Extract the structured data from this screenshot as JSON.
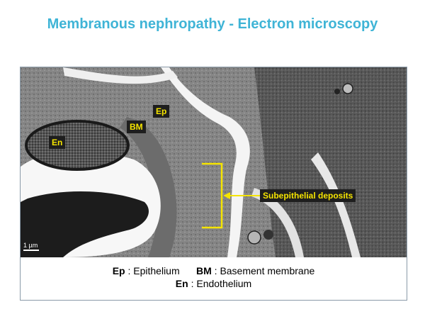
{
  "title": "Membranous nephropathy - Electron microscopy",
  "image": {
    "labels": {
      "ep": "Ep",
      "bm": "BM",
      "en": "En",
      "deposits": "Subepithelial deposits"
    },
    "scale_bar": "1 µm"
  },
  "legend": {
    "ep_abbr": "Ep",
    "ep_sep": ":",
    "ep_text": "Epithelium",
    "bm_abbr": "BM",
    "bm_sep": ":",
    "bm_text": "Basement membrane",
    "en_abbr": "En",
    "en_sep": ":",
    "en_text": "Endothelium"
  }
}
